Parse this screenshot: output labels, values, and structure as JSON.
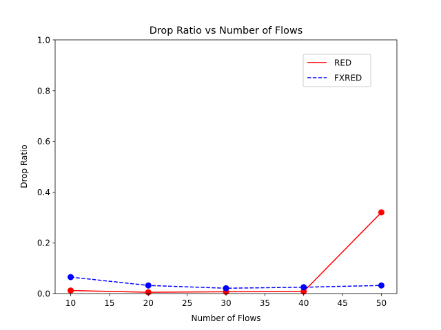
{
  "chart_data": {
    "type": "line",
    "title": "Drop Ratio vs Number of Flows",
    "xlabel": "Number of Flows",
    "ylabel": "Drop Ratio",
    "x": [
      10,
      20,
      30,
      40,
      50
    ],
    "xticks": [
      10,
      15,
      20,
      25,
      30,
      35,
      40,
      45,
      50
    ],
    "yticks": [
      0.0,
      0.2,
      0.4,
      0.6,
      0.8,
      1.0
    ],
    "xlim": [
      8,
      52
    ],
    "ylim": [
      0,
      1.0
    ],
    "grid": false,
    "legend_position": "top-right",
    "series": [
      {
        "name": "RED",
        "values": [
          0.012,
          0.005,
          0.007,
          0.008,
          0.32
        ],
        "color": "#ff0000",
        "style": "solid"
      },
      {
        "name": "FXRED",
        "values": [
          0.065,
          0.032,
          0.021,
          0.025,
          0.032
        ],
        "color": "#0000ff",
        "style": "dashed"
      }
    ]
  }
}
